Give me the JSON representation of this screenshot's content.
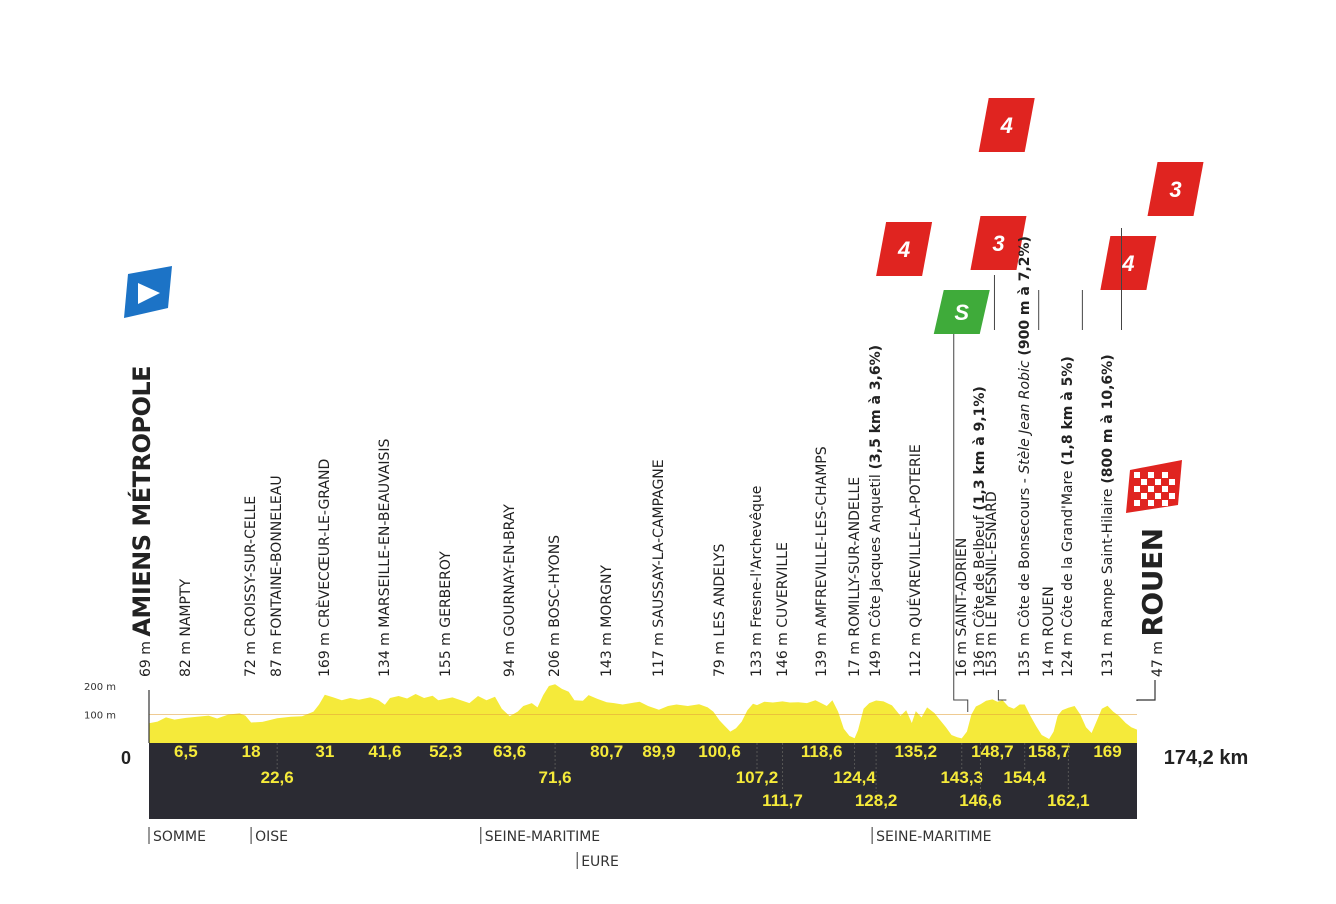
{
  "start": {
    "name": "AMIENS MÉTROPOLE",
    "altitude": "69 m",
    "km": "0"
  },
  "finish": {
    "name": "ROUEN",
    "altitude": "47 m",
    "km": "174,2 km"
  },
  "scale": {
    "label_200": "200 m",
    "label_100": "100 m",
    "max_altitude": 200
  },
  "total_distance": 174.2,
  "waypoints": [
    {
      "km": 6.5,
      "km_label": "6,5",
      "row": 1,
      "alt": "82 m",
      "name": "NAMPTY"
    },
    {
      "km": 18,
      "km_label": "18",
      "row": 1,
      "alt": "72 m",
      "name": "CROISSY-SUR-CELLE"
    },
    {
      "km": 22.6,
      "km_label": "22,6",
      "row": 2,
      "alt": "87 m",
      "name": "FONTAINE-BONNELEAU"
    },
    {
      "km": 31,
      "km_label": "31",
      "row": 1,
      "alt": "169 m",
      "name": "CRÈVECŒUR-LE-GRAND"
    },
    {
      "km": 41.6,
      "km_label": "41,6",
      "row": 1,
      "alt": "134 m",
      "name": "MARSEILLE-EN-BEAUVAISIS"
    },
    {
      "km": 52.3,
      "km_label": "52,3",
      "row": 1,
      "alt": "155 m",
      "name": "GERBEROY"
    },
    {
      "km": 63.6,
      "km_label": "63,6",
      "row": 1,
      "alt": "94 m",
      "name": "GOURNAY-EN-BRAY"
    },
    {
      "km": 71.6,
      "km_label": "71,6",
      "row": 2,
      "alt": "206 m",
      "name": "BOSC-HYONS"
    },
    {
      "km": 80.7,
      "km_label": "80,7",
      "row": 1,
      "alt": "143 m",
      "name": "MORGNY"
    },
    {
      "km": 89.9,
      "km_label": "89,9",
      "row": 1,
      "alt": "117 m",
      "name": "SAUSSAY-LA-CAMPAGNE"
    },
    {
      "km": 100.6,
      "km_label": "100,6",
      "row": 1,
      "alt": "79 m",
      "name": "LES ANDELYS"
    },
    {
      "km": 107.2,
      "km_label": "107,2",
      "row": 2,
      "alt": "133 m",
      "name": "Fresne-l'Archevêque"
    },
    {
      "km": 111.7,
      "km_label": "111,7",
      "row": 3,
      "alt": "146 m",
      "name": "CUVERVILLE"
    },
    {
      "km": 118.6,
      "km_label": "118,6",
      "row": 1,
      "alt": "139 m",
      "name": "AMFREVILLE-LES-CHAMPS"
    },
    {
      "km": 124.4,
      "km_label": "124,4",
      "row": 2,
      "alt": "17 m",
      "name": "ROMILLY-SUR-ANDELLE"
    },
    {
      "km": 128.2,
      "km_label": "128,2",
      "row": 3,
      "alt": "149 m",
      "name": "Côte Jacques Anquetil",
      "extra": "(3,5 km à 3,6%)"
    },
    {
      "km": 135.2,
      "km_label": "135,2",
      "row": 1,
      "alt": "112 m",
      "name": "QUÉVREVILLE-LA-POTERIE"
    },
    {
      "km": 143.3,
      "km_label": "143,3",
      "row": 2,
      "alt": "16 m",
      "name": "SAINT-ADRIEN"
    },
    {
      "km": 146.6,
      "km_label": "146,6",
      "row": 3,
      "alt": "136 m",
      "name": "Côte de Belbeuf",
      "extra": "(1,3 km à 9,1%)"
    },
    {
      "km": 148.7,
      "km_label": "148,7",
      "row": 1,
      "alt": "153 m",
      "name": "LE MESNIL-ESNARD"
    },
    {
      "km": 154.4,
      "km_label": "154,4",
      "row": 2,
      "alt": "135 m",
      "name": "Côte de Bonsecours -",
      "italic": "Stèle Jean Robic",
      "extra": "(900 m à 7,2%)"
    },
    {
      "km": 158.7,
      "km_label": "158,7",
      "row": 1,
      "alt": "14 m",
      "name": "ROUEN"
    },
    {
      "km": 162.1,
      "km_label": "162,1",
      "row": 3,
      "alt": "124 m",
      "name": "Côte de la Grand'Mare",
      "extra": "(1,8 km à 5%)"
    },
    {
      "km": 169,
      "km_label": "169",
      "row": 1,
      "alt": "131 m",
      "name": "Rampe Saint-Hilaire",
      "extra": "(800 m à 10,6%)"
    }
  ],
  "climbs": [
    {
      "category": "4",
      "km": 128.2
    },
    {
      "category": "3",
      "km": 146.6
    },
    {
      "category": "4",
      "km": 154.4
    },
    {
      "category": "4",
      "km": 162.1
    },
    {
      "category": "3",
      "km": 169
    }
  ],
  "sprint": {
    "label": "S",
    "km": 143.3
  },
  "regions": [
    {
      "name": "SOMME",
      "km": 0
    },
    {
      "name": "OISE",
      "km": 18
    },
    {
      "name": "SEINE-MARITIME",
      "km": 58.5
    },
    {
      "name": "EURE",
      "km": 75.5
    },
    {
      "name": "SEINE-MARITIME",
      "km": 127.5
    }
  ],
  "colors": {
    "profile": "#f5ea3a",
    "band": "#2b2b33",
    "km_text": "#f5ea3a",
    "climb_flag": "#e02420",
    "sprint_flag": "#3fab3a",
    "start_flag": "#1c73c6"
  }
}
